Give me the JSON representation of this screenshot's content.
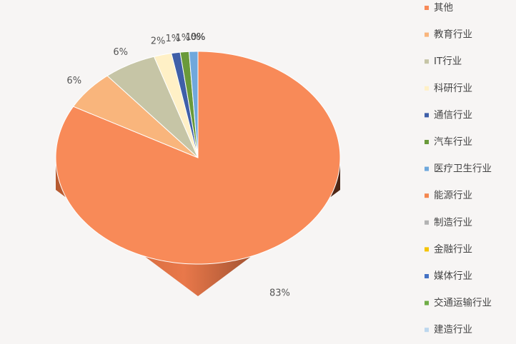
{
  "chart_data": {
    "type": "pie",
    "categories": [
      "其他",
      "教育行业",
      "IT行业",
      "科研行业",
      "通信行业",
      "汽车行业",
      "医疗卫生行业",
      "能源行业",
      "制造行业",
      "金融行业",
      "媒体行业",
      "交通运输行业",
      "建造行业"
    ],
    "values": [
      83,
      6,
      6,
      2,
      1,
      1,
      1,
      0,
      0,
      0,
      0,
      0,
      0
    ],
    "value_labels": [
      "83%",
      "6%",
      "6%",
      "2%",
      "1%",
      "1%",
      "1%",
      "0%",
      "0%",
      "0%",
      "0%",
      "0%",
      "0%"
    ],
    "colors": [
      "#f88a58",
      "#f9b57c",
      "#c6c5a6",
      "#fff0c6",
      "#3f5fa8",
      "#6a9a3a",
      "#6fa8dc",
      "#f4874f",
      "#b3b3b3",
      "#f5c400",
      "#4472c4",
      "#70ad47",
      "#bdd7ee"
    ],
    "legend": "right"
  }
}
